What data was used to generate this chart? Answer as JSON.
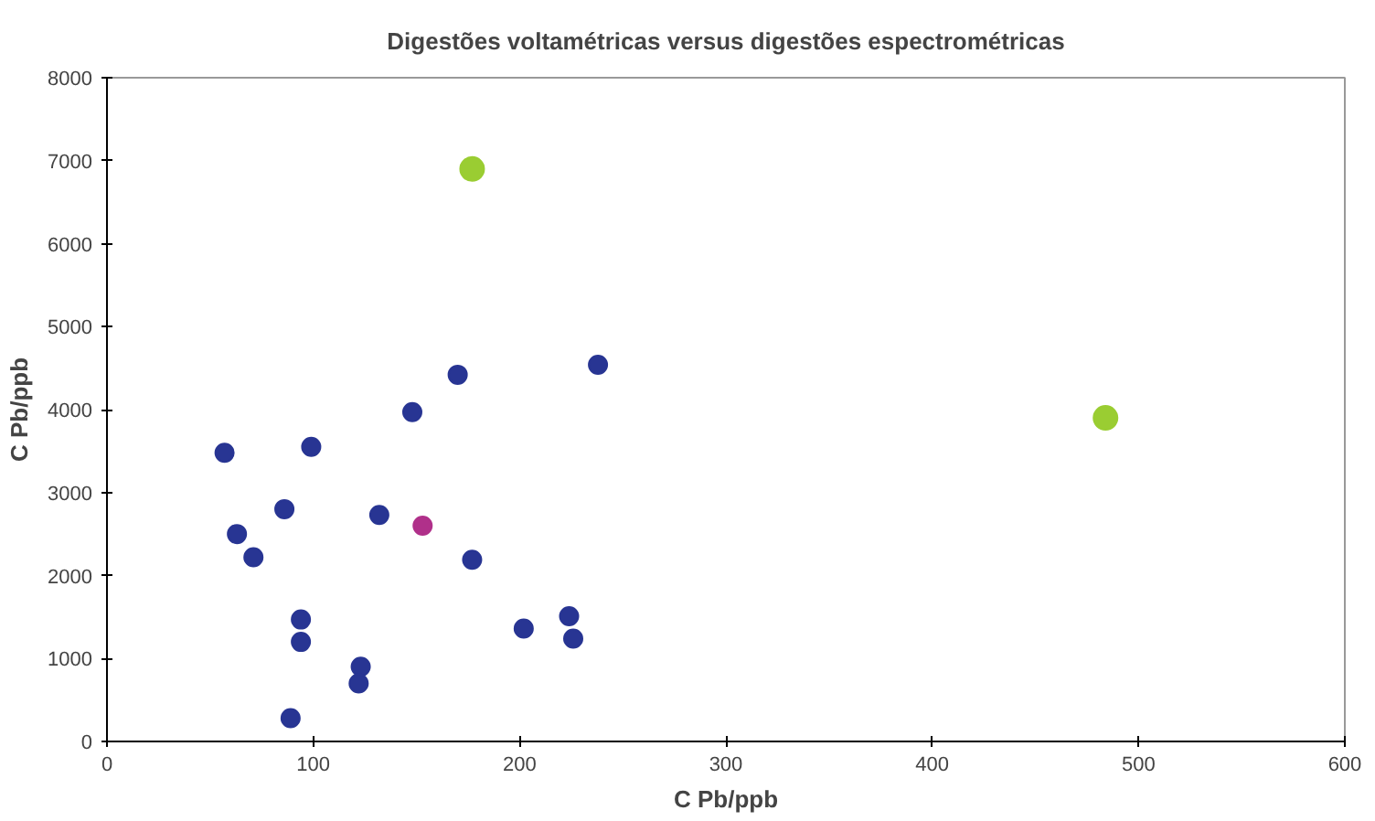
{
  "chart_data": {
    "type": "scatter",
    "title": "Digestões voltamétricas versus digestões espectrométricas",
    "xlabel": "C Pb/ppb",
    "ylabel": "C Pb/ppb",
    "xlim": [
      0,
      600
    ],
    "xticks": [
      0,
      100,
      200,
      300,
      400,
      500,
      600
    ],
    "ylim": [
      0,
      8000
    ],
    "yticks": [
      0,
      1000,
      2000,
      3000,
      4000,
      5000,
      6000,
      7000,
      8000
    ],
    "grid": false,
    "marker": "circle",
    "series": [
      {
        "color": "#283593",
        "x": [
          57,
          63,
          71,
          86,
          99,
          94,
          94,
          89,
          132,
          123,
          122,
          148,
          170,
          177,
          202,
          224,
          226,
          238
        ],
        "values": [
          3480,
          2500,
          2220,
          2800,
          3550,
          1470,
          1200,
          280,
          2730,
          900,
          700,
          3970,
          4420,
          2190,
          1360,
          1510,
          1240,
          4540
        ]
      },
      {
        "color": "#b0308a",
        "x": [
          153
        ],
        "values": [
          2600
        ]
      },
      {
        "color": "#9acd32",
        "x": [
          177,
          484
        ],
        "values": [
          6900,
          3900
        ]
      }
    ]
  }
}
